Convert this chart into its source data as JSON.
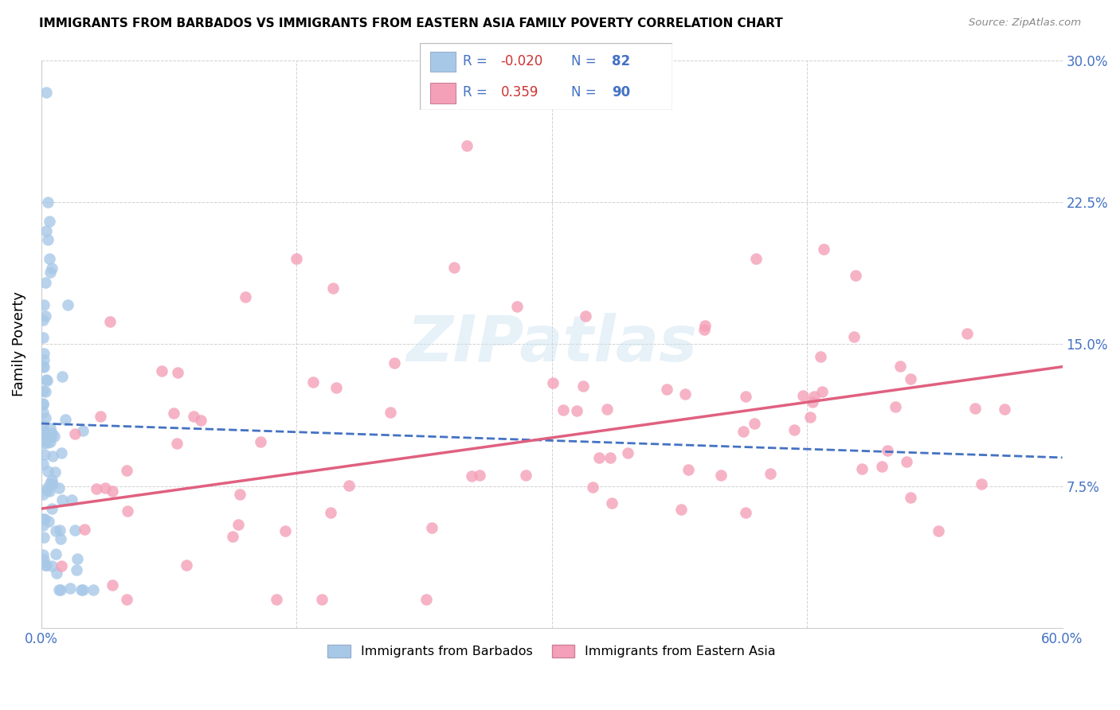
{
  "title": "IMMIGRANTS FROM BARBADOS VS IMMIGRANTS FROM EASTERN ASIA FAMILY POVERTY CORRELATION CHART",
  "source": "Source: ZipAtlas.com",
  "ylabel": "Family Poverty",
  "xlim": [
    0.0,
    0.6
  ],
  "ylim": [
    0.0,
    0.3
  ],
  "barbados_R": -0.02,
  "barbados_N": 82,
  "eastern_asia_R": 0.359,
  "eastern_asia_N": 90,
  "barbados_color": "#a8c8e8",
  "barbados_line_color": "#4472c4",
  "eastern_asia_color": "#f4a0b8",
  "eastern_asia_line_color": "#e06080",
  "watermark": "ZIPatlas",
  "barb_line_start_y": 0.108,
  "barb_line_end_y": 0.09,
  "east_line_start_y": 0.063,
  "east_line_end_y": 0.138
}
